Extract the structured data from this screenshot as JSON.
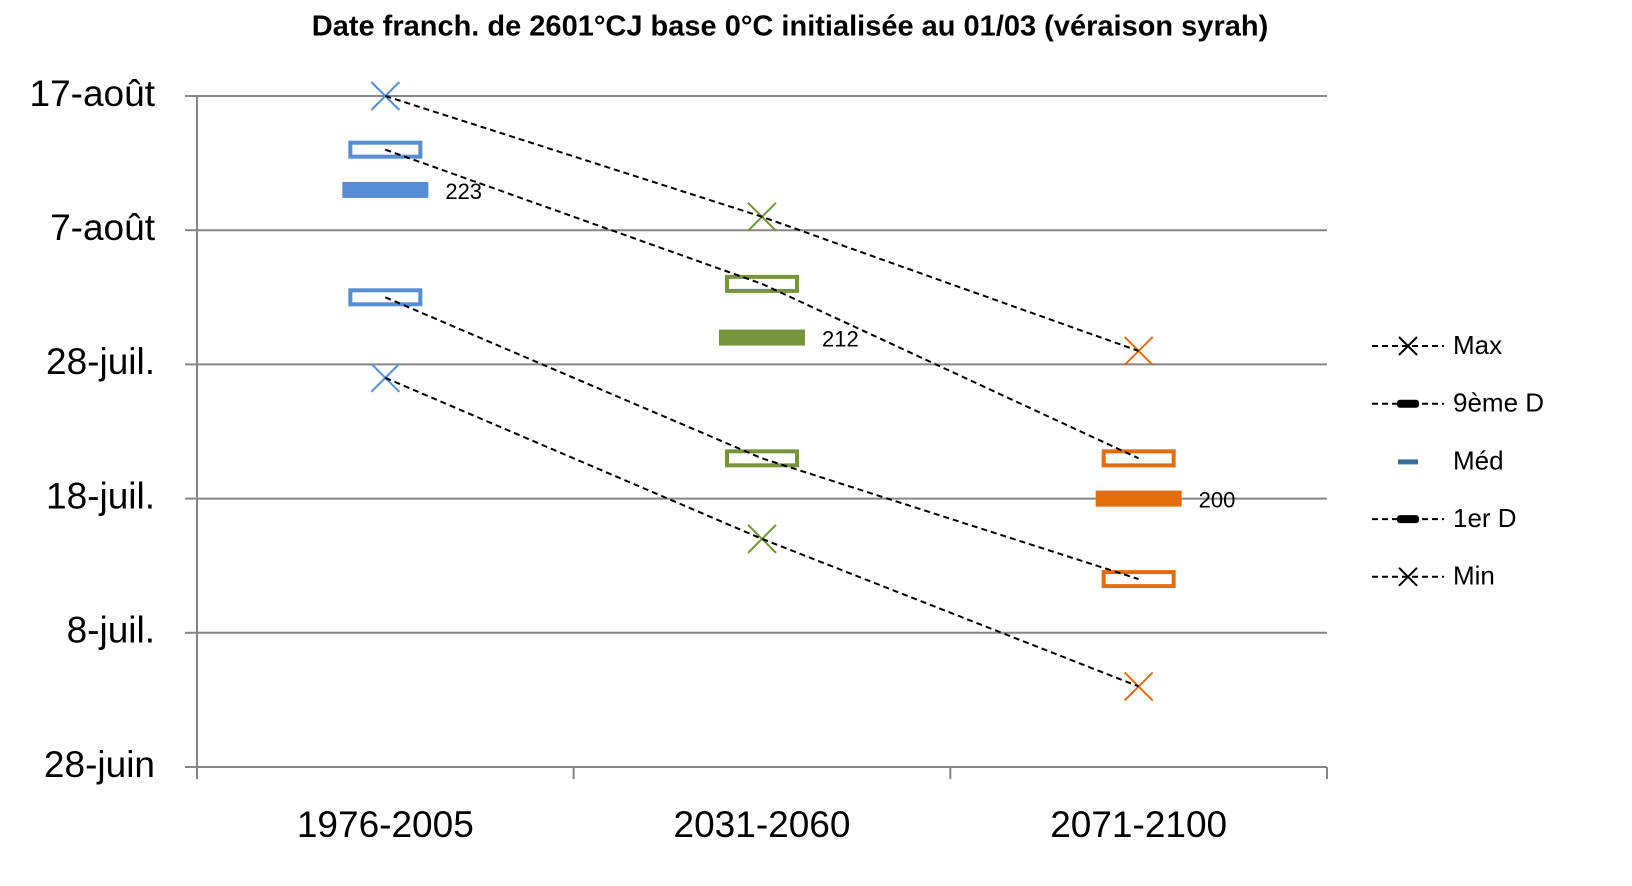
{
  "chart_data": {
    "type": "line",
    "title": "Date franch. de 2601°CJ base 0°C initialisée au 01/03 (véraison syrah)",
    "categories": [
      "1976-2005",
      "2031-2060",
      "2071-2100"
    ],
    "colors": [
      "#558ed5",
      "#77933c",
      "#e46c0a"
    ],
    "series": [
      {
        "name": "Max",
        "marker": "x",
        "line": true,
        "values": [
          230,
          221,
          211
        ]
      },
      {
        "name": "9ème D",
        "marker": "hollow-bar",
        "line": true,
        "values": [
          226,
          216,
          203
        ]
      },
      {
        "name": "Méd",
        "marker": "bar",
        "line": false,
        "show_labels": true,
        "values": [
          223,
          212,
          200
        ]
      },
      {
        "name": "1er D",
        "marker": "hollow-bar",
        "line": true,
        "values": [
          215,
          203,
          194
        ]
      },
      {
        "name": "Min",
        "marker": "x",
        "line": true,
        "values": [
          209,
          197,
          186
        ]
      }
    ],
    "ylim": [
      180,
      230
    ],
    "yticks": [
      {
        "value": 180,
        "label": "28-juin"
      },
      {
        "value": 190,
        "label": "8-juil."
      },
      {
        "value": 200,
        "label": "18-juil."
      },
      {
        "value": 210,
        "label": "28-juil."
      },
      {
        "value": 220,
        "label": "7-août"
      },
      {
        "value": 230,
        "label": "17-août"
      }
    ],
    "grid": true,
    "legend": "right"
  }
}
